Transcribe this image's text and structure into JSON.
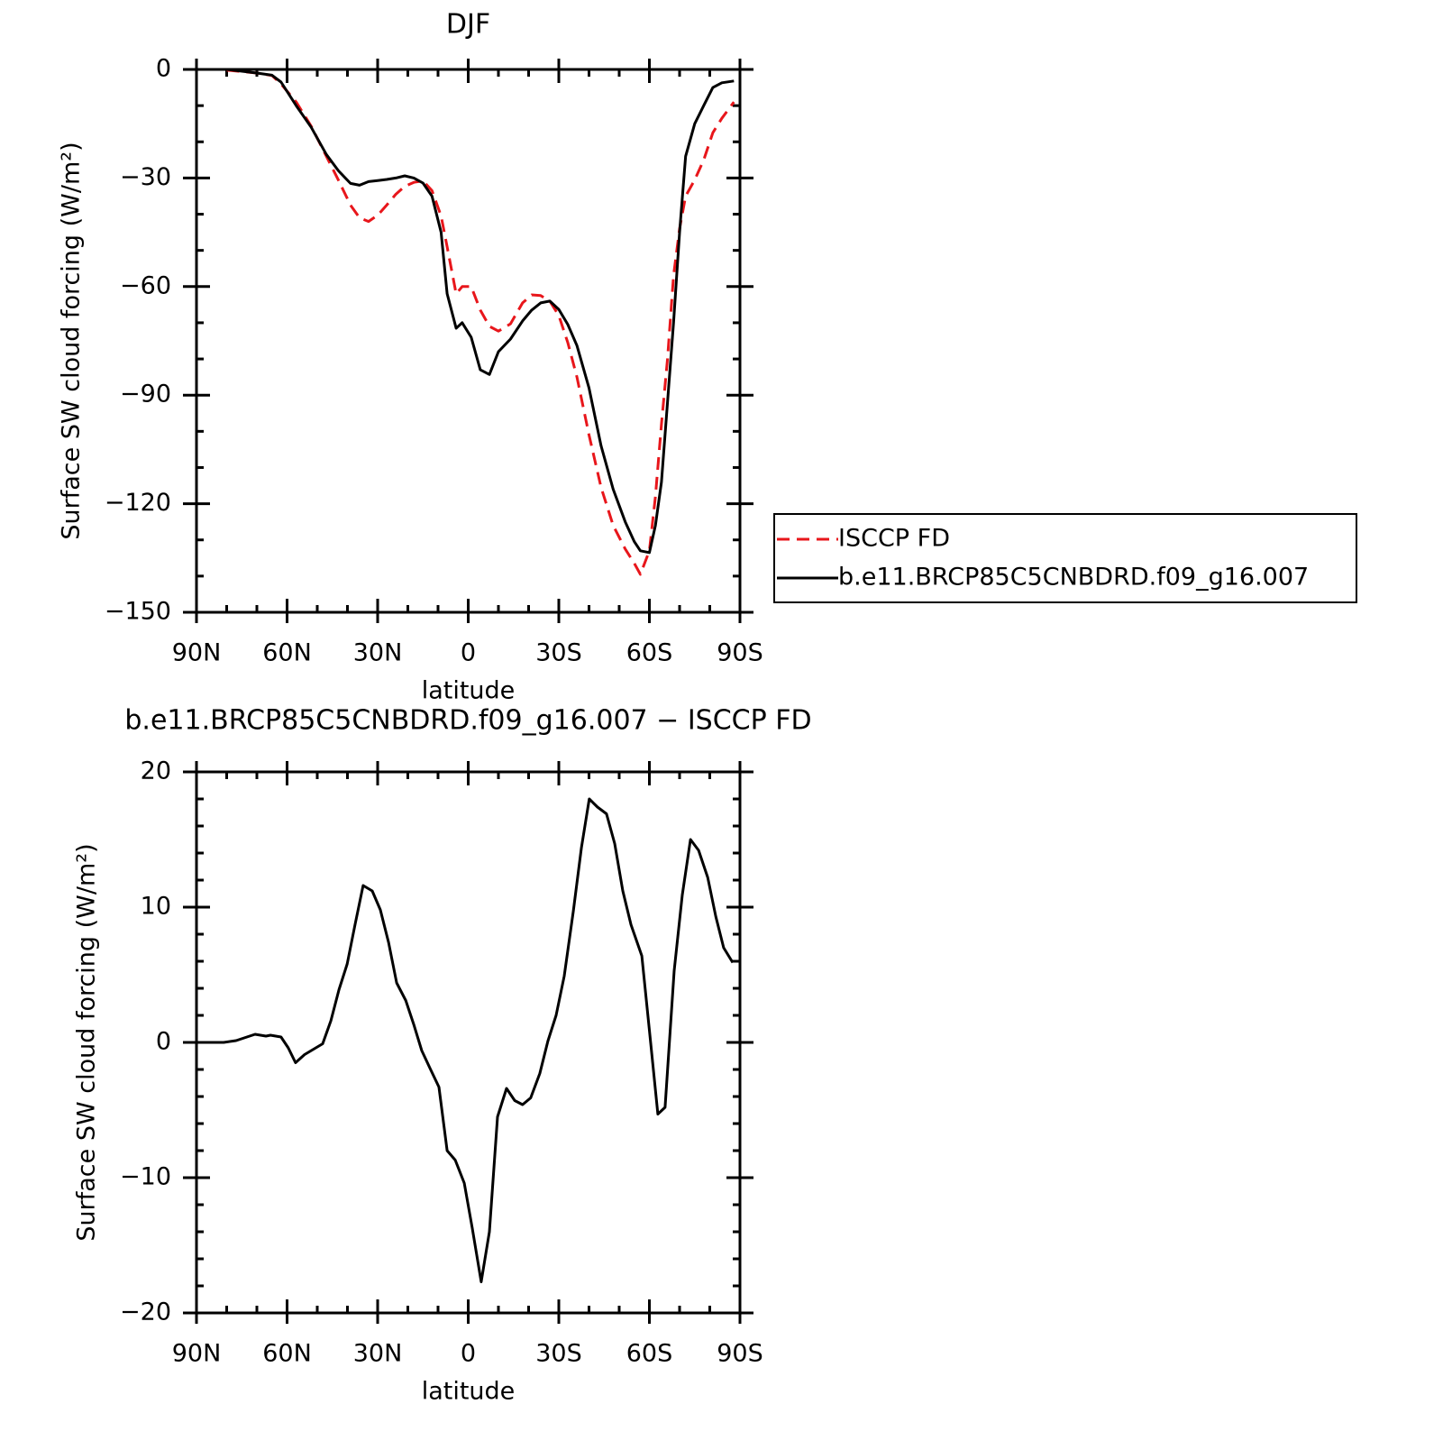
{
  "chart_data": [
    {
      "type": "line",
      "title": "DJF",
      "x_label": "latitude",
      "y_label": "Surface SW cloud forcing (W/m²)",
      "x": [
        80,
        70,
        65,
        62,
        57,
        52,
        47,
        43,
        39,
        36,
        33,
        30,
        27,
        24,
        21,
        18,
        15,
        12,
        9,
        7,
        4,
        2,
        -1,
        -4,
        -7,
        -10,
        -14,
        -18,
        -21,
        -24,
        -27,
        -30,
        -33,
        -36,
        -40,
        -44,
        -48,
        -52,
        -55,
        -57,
        -60,
        -62,
        -64,
        -66,
        -68,
        -70,
        -72,
        -75,
        -78,
        -81,
        -84,
        -88
      ],
      "series": [
        {
          "name": "ISCCP FD",
          "color": "#e8161b",
          "dashed": true,
          "values": [
            -0.2,
            -1,
            -1.7,
            -4,
            -9,
            -15.7,
            -24,
            -30.6,
            -37.5,
            -41,
            -42,
            -40.3,
            -37.5,
            -34.5,
            -32.3,
            -31.2,
            -30.8,
            -33.5,
            -40.5,
            -49,
            -62,
            -60,
            -60,
            -66.5,
            -71,
            -72.3,
            -70.3,
            -64.5,
            -62.3,
            -62.5,
            -64,
            -68,
            -75.5,
            -85,
            -101,
            -115.5,
            -126,
            -132.5,
            -136.5,
            -139.5,
            -133,
            -118,
            -98,
            -80,
            -57,
            -44,
            -35,
            -30.5,
            -25,
            -17.5,
            -13.5,
            -9
          ]
        },
        {
          "name": "b.e11.BRCP85C5CNBDRD.f09_g16.007",
          "color": "#000000",
          "dashed": false,
          "values": [
            0,
            -1,
            -1.6,
            -3.5,
            -10,
            -16,
            -23.5,
            -28,
            -31.5,
            -32,
            -31,
            -30.7,
            -30.4,
            -30,
            -29.4,
            -30,
            -31.4,
            -35,
            -45,
            -62,
            -71.5,
            -70,
            -74,
            -83,
            -84.3,
            -78,
            -74.5,
            -69.5,
            -66.5,
            -64.5,
            -64,
            -66.3,
            -70.5,
            -76.3,
            -88,
            -104,
            -116,
            -125,
            -130.5,
            -133,
            -133.5,
            -126,
            -114,
            -92,
            -70,
            -45,
            -24,
            -15,
            -10,
            -5,
            -3.7,
            -3.2
          ]
        }
      ],
      "xlim": [
        90,
        -90
      ],
      "ylim": [
        -150,
        0
      ],
      "xticks": [
        {
          "value": 90,
          "label": "90N"
        },
        {
          "value": 60,
          "label": "60N"
        },
        {
          "value": 30,
          "label": "30N"
        },
        0,
        {
          "value": -30,
          "label": "30S"
        },
        {
          "value": -60,
          "label": "60S"
        },
        {
          "value": -90,
          "label": "90S"
        }
      ],
      "yticks": [
        0,
        {
          "value": -30,
          "label": "−30"
        },
        {
          "value": -60,
          "label": "−60"
        },
        {
          "value": -90,
          "label": "−90"
        },
        {
          "value": -120,
          "label": "−120"
        },
        {
          "value": -150,
          "label": "−150"
        }
      ],
      "x_minor_divisions": 3,
      "y_minor_divisions": 3,
      "legend": "right"
    },
    {
      "type": "line",
      "title": "b.e11.BRCP85C5CNBDRD.f09_g16.007 − ISCCP FD",
      "x_label": "latitude",
      "y_label": "Surface SW cloud forcing (W/m²)",
      "x": [
        87.3,
        81,
        76.9,
        70.6,
        67,
        65.5,
        62,
        59.6,
        57.2,
        54.2,
        48.2,
        45.5,
        42.8,
        40.1,
        37.5,
        34.8,
        31.8,
        29.1,
        26.4,
        23.7,
        20.7,
        18,
        15.4,
        12.7,
        9.7,
        7,
        4.3,
        1.3,
        -1.3,
        -4.3,
        -7,
        -9.7,
        -12.7,
        -15.4,
        -18,
        -20.7,
        -23.7,
        -26.4,
        -29.1,
        -31.8,
        -34.8,
        -37.5,
        -40.1,
        -42.8,
        -45.8,
        -48.5,
        -51.2,
        -53.9,
        -57.5,
        -59.9,
        -62.8,
        -65.2,
        -68.2,
        -70.9,
        -73.6,
        -76.3,
        -79.3,
        -82,
        -84.6,
        -87.6
      ],
      "series": [
        {
          "color": "#000000",
          "dashed": false,
          "values": [
            0,
            0,
            0.13,
            0.6,
            0.47,
            0.53,
            0.4,
            -0.4,
            -1.5,
            -0.9,
            -0.1,
            1.6,
            3.9,
            5.8,
            8.7,
            11.6,
            11.2,
            9.8,
            7.4,
            4.4,
            3.1,
            1.3,
            -0.6,
            -1.9,
            -3.3,
            -8,
            -8.7,
            -10.4,
            -13.7,
            -17.7,
            -14,
            -5.5,
            -3.4,
            -4.3,
            -4.6,
            -4.1,
            -2.3,
            0.1,
            2,
            4.9,
            9.7,
            14.4,
            18,
            17.4,
            16.9,
            14.7,
            11.2,
            8.7,
            6.4,
            1.1,
            -5.3,
            -4.8,
            5.3,
            10.9,
            15,
            14.2,
            12.2,
            9.3,
            7,
            5.9
          ]
        }
      ],
      "xlim": [
        90,
        -90
      ],
      "ylim": [
        -20,
        20
      ],
      "xticks": [
        {
          "value": 90,
          "label": "90N"
        },
        {
          "value": 60,
          "label": "60N"
        },
        {
          "value": 30,
          "label": "30N"
        },
        0,
        {
          "value": -30,
          "label": "30S"
        },
        {
          "value": -60,
          "label": "60S"
        },
        {
          "value": -90,
          "label": "90S"
        }
      ],
      "yticks": [
        {
          "value": -20,
          "label": "−20"
        },
        {
          "value": -10,
          "label": "−10"
        },
        0,
        10,
        20
      ],
      "x_minor_divisions": 3,
      "y_minor_divisions": 5
    }
  ]
}
